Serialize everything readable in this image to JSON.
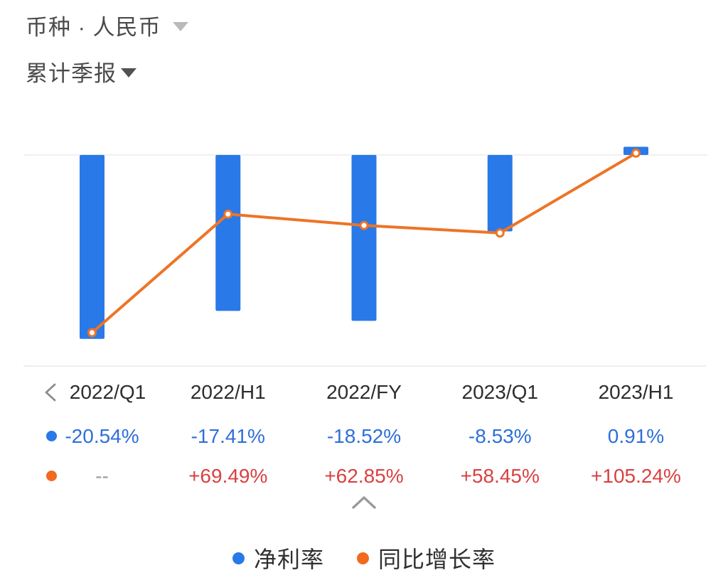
{
  "header": {
    "currency_selector": "币种 · 人民币",
    "period_selector": "累计季报"
  },
  "colors": {
    "bar_blue": "#2979E8",
    "line_orange": "#ED7426",
    "legend_orange": "#F16A1E",
    "blue_value_text": "#2E6FD9",
    "red_value_text": "#D94141",
    "muted_text": "#9A9A9A",
    "header_text": "#2D2D2D",
    "hairline": "#F0F0F0"
  },
  "chart_data": {
    "type": "bar",
    "title": "",
    "xlabel": "",
    "ylabel": "",
    "categories": [
      "2022/Q1",
      "2022/H1",
      "2022/FY",
      "2023/Q1",
      "2023/H1"
    ],
    "series": [
      {
        "name": "净利率",
        "kind": "bar",
        "color": "#2979E8",
        "values": [
          -20.54,
          -17.41,
          -18.52,
          -8.53,
          0.91
        ],
        "labels": [
          "-20.54%",
          "-17.41%",
          "-18.52%",
          "-8.53%",
          "0.91%"
        ]
      },
      {
        "name": "同比增长率",
        "kind": "line",
        "color": "#ED7426",
        "values": [
          null,
          69.49,
          62.85,
          58.45,
          105.24
        ],
        "labels": [
          "--",
          "+69.49%",
          "+62.85%",
          "+58.45%",
          "+105.24%"
        ]
      }
    ],
    "baseline_value": 0,
    "grid": "single zero baseline only",
    "legend_position": "bottom"
  },
  "legend": {
    "items": [
      {
        "label": "净利率",
        "color": "#2979E8"
      },
      {
        "label": "同比增长率",
        "color": "#F16A1E"
      }
    ]
  }
}
